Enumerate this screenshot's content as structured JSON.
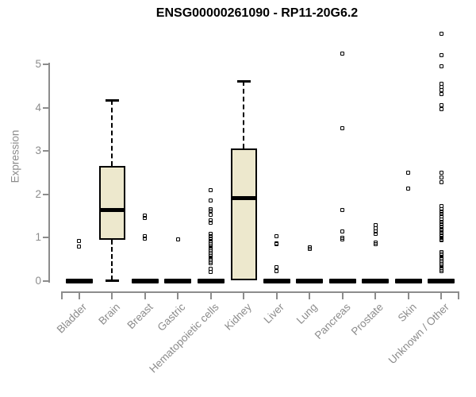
{
  "page": {
    "background": "#ffffff"
  },
  "colors": {
    "title": "#000000",
    "axis": "#8c8c8c",
    "box_fill": "#ede8cd",
    "box_border": "#000000"
  },
  "chart_data": {
    "type": "boxplot",
    "title": "ENSG00000261090 - RP11-20G6.2",
    "ylabel": "Expression",
    "xlabel": "",
    "ylim": [
      0,
      5.8
    ],
    "yticks": [
      0,
      1,
      2,
      3,
      4,
      5
    ],
    "grid": false,
    "legend": "none",
    "box_fill": "#ede8cd",
    "axis_color": "#8c8c8c",
    "categories": [
      "Bladder",
      "Brain",
      "Breast",
      "Gastric",
      "Hematopoietic cells",
      "Kidney",
      "Liver",
      "Lung",
      "Pancreas",
      "Prostate",
      "Skin",
      "Unknown / Other"
    ],
    "series": [
      {
        "name": "Bladder",
        "q1": 0,
        "median": 0,
        "q3": 0,
        "whisker_low": 0,
        "whisker_high": 0,
        "outliers": [
          0.79,
          0.92
        ]
      },
      {
        "name": "Brain",
        "q1": 0.95,
        "median": 1.63,
        "q3": 2.65,
        "whisker_low": 0,
        "whisker_high": 4.17,
        "outliers": []
      },
      {
        "name": "Breast",
        "q1": 0,
        "median": 0,
        "q3": 0,
        "whisker_low": 0,
        "whisker_high": 0,
        "outliers": [
          0.97,
          1.02,
          1.45,
          1.5
        ]
      },
      {
        "name": "Gastric",
        "q1": 0,
        "median": 0,
        "q3": 0,
        "whisker_low": 0,
        "whisker_high": 0,
        "outliers": [
          0.95
        ]
      },
      {
        "name": "Hematopoietic cells",
        "q1": 0,
        "median": 0,
        "q3": 0,
        "whisker_low": 0,
        "whisker_high": 0,
        "outliers": [
          2.1,
          1.86,
          1.66,
          1.62,
          1.53,
          1.4,
          1.34,
          1.08,
          1.02,
          0.97,
          0.92,
          0.88,
          0.84,
          0.8,
          0.76,
          0.72,
          0.68,
          0.64,
          0.6,
          0.56,
          0.52,
          0.48,
          0.44,
          0.4,
          0.28,
          0.21
        ]
      },
      {
        "name": "Kidney",
        "q1": 0,
        "median": 1.9,
        "q3": 3.05,
        "whisker_low": 0,
        "whisker_high": 4.62,
        "outliers": []
      },
      {
        "name": "Liver",
        "q1": 0,
        "median": 0,
        "q3": 0,
        "whisker_low": 0,
        "whisker_high": 0,
        "outliers": [
          0.22,
          0.31,
          0.84,
          0.87,
          1.02
        ]
      },
      {
        "name": "Lung",
        "q1": 0,
        "median": 0,
        "q3": 0,
        "whisker_low": 0,
        "whisker_high": 0,
        "outliers": [
          0.74,
          0.77
        ]
      },
      {
        "name": "Pancreas",
        "q1": 0,
        "median": 0,
        "q3": 0,
        "whisker_low": 0,
        "whisker_high": 0,
        "outliers": [
          0.95,
          1.0,
          1.14,
          1.63,
          3.52,
          5.25
        ]
      },
      {
        "name": "Prostate",
        "q1": 0,
        "median": 0,
        "q3": 0,
        "whisker_low": 0,
        "whisker_high": 0,
        "outliers": [
          0.85,
          0.88,
          1.08,
          1.14,
          1.21,
          1.28
        ]
      },
      {
        "name": "Skin",
        "q1": 0,
        "median": 0,
        "q3": 0,
        "whisker_low": 0,
        "whisker_high": 0,
        "outliers": [
          2.12,
          2.5
        ]
      },
      {
        "name": "Unknown / Other",
        "q1": 0,
        "median": 0,
        "q3": 0,
        "whisker_low": 0,
        "whisker_high": 0,
        "outliers": [
          5.7,
          5.22,
          4.96,
          4.55,
          4.48,
          4.4,
          4.32,
          4.06,
          3.96,
          2.49,
          2.38,
          2.28,
          1.72,
          1.66,
          1.6,
          1.54,
          1.48,
          1.42,
          1.36,
          1.3,
          1.25,
          1.2,
          1.15,
          1.1,
          1.05,
          1.0,
          0.95,
          0.93,
          0.66,
          0.62,
          0.58,
          0.54,
          0.5,
          0.46,
          0.42,
          0.38,
          0.34,
          0.3,
          0.26,
          0.22
        ]
      }
    ]
  }
}
